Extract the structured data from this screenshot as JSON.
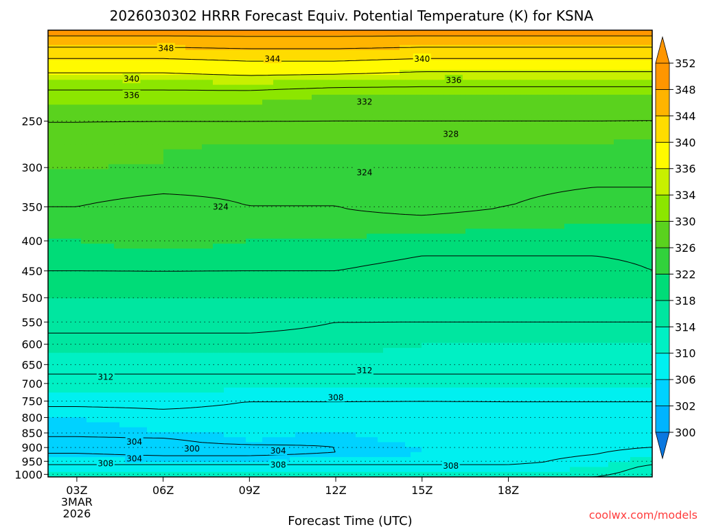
{
  "chart_data": {
    "type": "heatmap",
    "title": "2026030302 HRRR Forecast Equiv. Potential Temperature (K) for KSNA",
    "xlabel": "Forecast Time (UTC)",
    "ylabel": "",
    "credit": "coolwx.com/models",
    "x_hours": [
      0,
      3,
      6,
      9,
      12,
      15,
      18,
      20
    ],
    "xlim": [
      -1,
      20
    ],
    "x_ticks": [
      {
        "hour": 0,
        "label": "03Z",
        "sub1": "3MAR",
        "sub2": "2026"
      },
      {
        "hour": 3,
        "label": "06Z"
      },
      {
        "hour": 6,
        "label": "09Z"
      },
      {
        "hour": 9,
        "label": "12Z"
      },
      {
        "hour": 12,
        "label": "15Z"
      },
      {
        "hour": 15,
        "label": "18Z"
      }
    ],
    "y_ticks": [
      250,
      300,
      350,
      400,
      450,
      500,
      550,
      600,
      650,
      700,
      750,
      800,
      850,
      900,
      950,
      1000
    ],
    "ylim_hpa": [
      1010,
      175
    ],
    "contour_interval_k": 4,
    "surface_pressure_hpa": 1010,
    "colorbar": {
      "levels": [
        300,
        302,
        306,
        310,
        314,
        318,
        322,
        326,
        330,
        334,
        336,
        340,
        344,
        348,
        352
      ],
      "colors": [
        "#0a78e0",
        "#00b4ff",
        "#00d2ff",
        "#00f0f0",
        "#00f0c4",
        "#00e6a0",
        "#00dc78",
        "#32d23c",
        "#5ad21e",
        "#8ce600",
        "#c8f000",
        "#fffa00",
        "#ffdc00",
        "#ffb400",
        "#ff9600",
        "#ff9600"
      ]
    },
    "equiv_potential_temperature_k": [
      {
        "hpa": 175,
        "values": [
          350,
          350,
          350,
          350,
          350,
          350,
          350,
          350
        ]
      },
      {
        "hpa": 200,
        "values": [
          338,
          338,
          339,
          339,
          338,
          338,
          338,
          338
        ]
      },
      {
        "hpa": 225,
        "values": [
          331,
          331,
          331,
          330,
          330,
          330,
          330,
          330
        ]
      },
      {
        "hpa": 250,
        "values": [
          328,
          328,
          328,
          328,
          328,
          328,
          328,
          328
        ]
      },
      {
        "hpa": 275,
        "values": [
          327,
          326,
          326,
          326,
          326,
          326,
          326,
          325
        ]
      },
      {
        "hpa": 300,
        "values": [
          326,
          326,
          325,
          325,
          325,
          325,
          325,
          325
        ]
      },
      {
        "hpa": 350,
        "values": [
          324,
          323,
          324,
          324,
          325,
          324,
          323,
          323
        ]
      },
      {
        "hpa": 400,
        "values": [
          322,
          323,
          322,
          322,
          321,
          321,
          321,
          321
        ]
      },
      {
        "hpa": 450,
        "values": [
          320,
          320,
          320,
          320,
          319,
          319,
          319,
          320
        ]
      },
      {
        "hpa": 500,
        "values": [
          318,
          318,
          318,
          318,
          318,
          318,
          318,
          318
        ]
      },
      {
        "hpa": 550,
        "values": [
          317,
          317,
          317,
          316,
          316,
          316,
          316,
          316
        ]
      },
      {
        "hpa": 600,
        "values": [
          315,
          315,
          315,
          315,
          314,
          314,
          314,
          314
        ]
      },
      {
        "hpa": 650,
        "values": [
          313,
          313,
          313,
          313,
          313,
          313,
          313,
          313
        ]
      },
      {
        "hpa": 700,
        "values": [
          311,
          311,
          311,
          311,
          311,
          311,
          311,
          311
        ]
      },
      {
        "hpa": 750,
        "values": [
          309,
          309,
          308,
          308,
          308,
          308,
          308,
          308
        ]
      },
      {
        "hpa": 800,
        "values": [
          306,
          307,
          307,
          307,
          306,
          307,
          307,
          307
        ]
      },
      {
        "hpa": 850,
        "values": [
          305,
          306,
          306,
          306,
          307,
          306,
          307,
          307
        ]
      },
      {
        "hpa": 875,
        "values": [
          303,
          303,
          307,
          305,
          307,
          307,
          307,
          308
        ]
      },
      {
        "hpa": 900,
        "values": [
          303,
          302,
          302,
          304,
          306,
          307,
          307,
          308
        ]
      },
      {
        "hpa": 925,
        "values": [
          304,
          303,
          303,
          304,
          306,
          307,
          308,
          310
        ]
      },
      {
        "hpa": 950,
        "values": [
          307,
          307,
          307,
          307,
          307,
          307,
          309,
          311
        ]
      },
      {
        "hpa": 975,
        "values": [
          309,
          309,
          309,
          309,
          309,
          309,
          310,
          313
        ]
      },
      {
        "hpa": 1000,
        "values": [
          311,
          311,
          311,
          311,
          311,
          311,
          311,
          314
        ]
      },
      {
        "hpa": 1010,
        "values": [
          312,
          312,
          312,
          312,
          312,
          312,
          312,
          314
        ]
      }
    ],
    "contour_labels": [
      {
        "text": "348",
        "hour": 3.1,
        "hpa": 188
      },
      {
        "text": "344",
        "hour": 6.8,
        "hpa": 196
      },
      {
        "text": "340",
        "hour": 12.0,
        "hpa": 196
      },
      {
        "text": "340",
        "hour": 1.9,
        "hpa": 212
      },
      {
        "text": "336",
        "hour": 13.1,
        "hpa": 213
      },
      {
        "text": "336",
        "hour": 1.9,
        "hpa": 226
      },
      {
        "text": "332",
        "hour": 10.0,
        "hpa": 232
      },
      {
        "text": "328",
        "hour": 13.0,
        "hpa": 263
      },
      {
        "text": "324",
        "hour": 10.0,
        "hpa": 306
      },
      {
        "text": "324",
        "hour": 5.0,
        "hpa": 350
      },
      {
        "text": "312",
        "hour": 1.0,
        "hpa": 683
      },
      {
        "text": "312",
        "hour": 10.0,
        "hpa": 665
      },
      {
        "text": "308",
        "hour": 9.0,
        "hpa": 740
      },
      {
        "text": "304",
        "hour": 2.0,
        "hpa": 880
      },
      {
        "text": "304",
        "hour": 2.0,
        "hpa": 940
      },
      {
        "text": "300",
        "hour": 4.0,
        "hpa": 905
      },
      {
        "text": "304",
        "hour": 7.0,
        "hpa": 912
      },
      {
        "text": "308",
        "hour": 1.0,
        "hpa": 958
      },
      {
        "text": "308",
        "hour": 7.0,
        "hpa": 963
      },
      {
        "text": "308",
        "hour": 13.0,
        "hpa": 968
      }
    ]
  }
}
